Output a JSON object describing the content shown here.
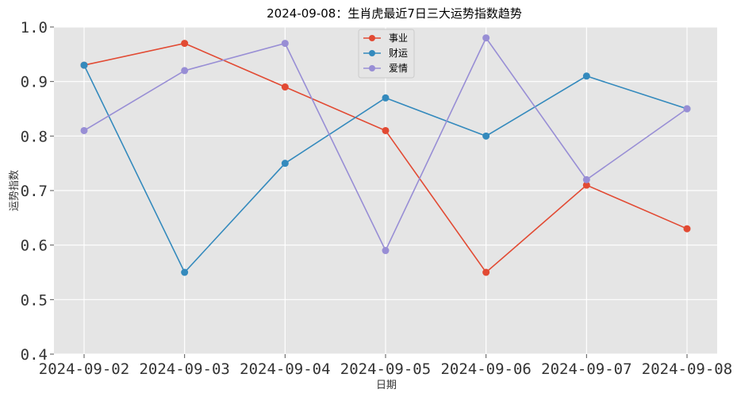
{
  "chart_data": {
    "type": "line",
    "title": "2024-09-08：生肖虎最近7日三大运势指数趋势",
    "xlabel": "日期",
    "ylabel": "运势指数",
    "categories": [
      "2024-09-02",
      "2024-09-03",
      "2024-09-04",
      "2024-09-05",
      "2024-09-06",
      "2024-09-07",
      "2024-09-08"
    ],
    "ylim": [
      0.4,
      1.0
    ],
    "yticks": [
      "0.4",
      "0.5",
      "0.6",
      "0.7",
      "0.8",
      "0.9",
      "1.0"
    ],
    "grid": true,
    "legend_position": "top-center",
    "series": [
      {
        "name": "事业",
        "color": "#E24A33",
        "values": [
          0.93,
          0.97,
          0.89,
          0.81,
          0.55,
          0.71,
          0.63
        ]
      },
      {
        "name": "财运",
        "color": "#348ABD",
        "values": [
          0.93,
          0.55,
          0.75,
          0.87,
          0.8,
          0.91,
          0.85
        ]
      },
      {
        "name": "爱情",
        "color": "#988ED5",
        "values": [
          0.81,
          0.92,
          0.97,
          0.59,
          0.98,
          0.72,
          0.85
        ]
      }
    ]
  }
}
